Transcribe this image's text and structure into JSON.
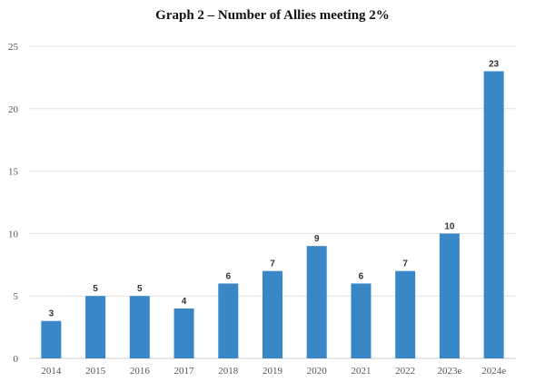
{
  "chart_data": {
    "type": "bar",
    "title": "Graph 2 – Number of Allies meeting 2%",
    "xlabel": "",
    "ylabel": "",
    "categories": [
      "2014",
      "2015",
      "2016",
      "2017",
      "2018",
      "2019",
      "2020",
      "2021",
      "2022",
      "2023e",
      "2024e"
    ],
    "values": [
      3,
      5,
      5,
      4,
      6,
      7,
      9,
      6,
      7,
      10,
      23
    ],
    "data_labels": [
      "3",
      "5",
      "5",
      "4",
      "6",
      "7",
      "9",
      "6",
      "7",
      "10",
      "23"
    ],
    "ylim": [
      0,
      25
    ],
    "yticks": [
      "0",
      "5",
      "10",
      "15",
      "20",
      "25"
    ],
    "grid": true,
    "legend": "none",
    "colors": {
      "bar": "#3a87c8",
      "grid": "#e2e2e2"
    }
  }
}
